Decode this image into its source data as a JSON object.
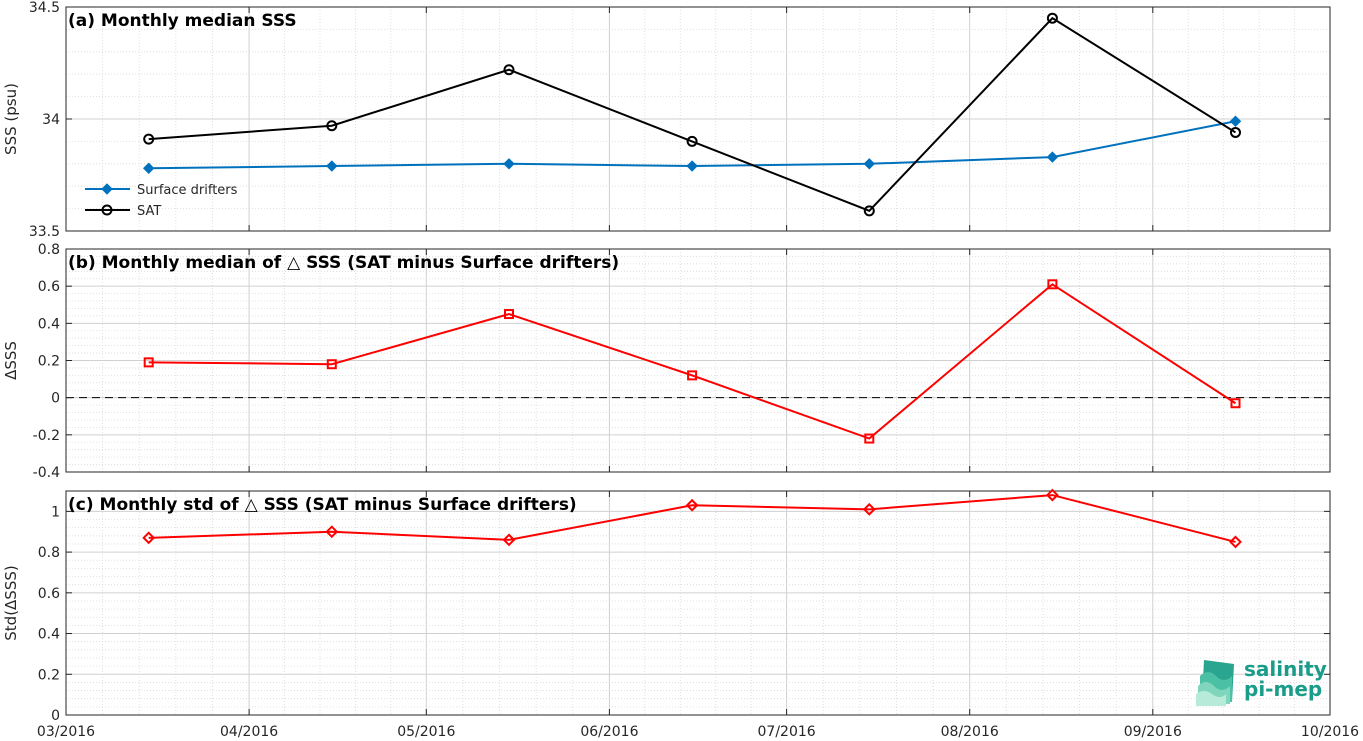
{
  "chart_data": [
    {
      "type": "line",
      "title": "(a) Monthly median SSS",
      "ylabel": "SSS (psu)",
      "ylim": [
        33.5,
        34.5
      ],
      "yticks": [
        33.5,
        34,
        34.5
      ],
      "ytick_labels": [
        "33.5",
        "34",
        "34.5"
      ],
      "x": [
        "2016-03-15",
        "2016-04-15",
        "2016-05-15",
        "2016-06-15",
        "2016-07-15",
        "2016-08-15",
        "2016-09-15"
      ],
      "series": [
        {
          "name": "Surface drifters",
          "values": [
            33.78,
            33.79,
            33.8,
            33.79,
            33.8,
            33.83,
            33.99
          ],
          "color": "#0072BD",
          "marker": "diamond"
        },
        {
          "name": "SAT",
          "values": [
            33.91,
            33.97,
            34.22,
            33.9,
            33.59,
            34.45,
            33.94
          ],
          "color": "#000000",
          "marker": "circle"
        }
      ],
      "legend_position": "lower-left",
      "grid": true
    },
    {
      "type": "line",
      "title": "(b) Monthly median of △ SSS (SAT minus Surface drifters)",
      "ylabel": "ΔSSS",
      "ylim": [
        -0.4,
        0.8
      ],
      "yticks": [
        -0.4,
        -0.2,
        0,
        0.2,
        0.4,
        0.6,
        0.8
      ],
      "ytick_labels": [
        "-0.4",
        "-0.2",
        "0",
        "0.2",
        "0.4",
        "0.6",
        "0.8"
      ],
      "x": [
        "2016-03-15",
        "2016-04-15",
        "2016-05-15",
        "2016-06-15",
        "2016-07-15",
        "2016-08-15",
        "2016-09-15"
      ],
      "series": [
        {
          "values": [
            0.19,
            0.18,
            0.45,
            0.12,
            -0.22,
            0.61,
            -0.03
          ],
          "color": "#FF0000",
          "marker": "square"
        }
      ],
      "zero_line": true,
      "grid": true
    },
    {
      "type": "line",
      "title": "(c) Monthly std of △ SSS (SAT minus Surface drifters)",
      "ylabel": "Std(ΔSSS)",
      "ylim": [
        0,
        1.1
      ],
      "yticks": [
        0,
        0.2,
        0.4,
        0.6,
        0.8,
        1
      ],
      "ytick_labels": [
        "0",
        "0.2",
        "0.4",
        "0.6",
        "0.8",
        "1"
      ],
      "x": [
        "2016-03-15",
        "2016-04-15",
        "2016-05-15",
        "2016-06-15",
        "2016-07-15",
        "2016-08-15",
        "2016-09-15"
      ],
      "series": [
        {
          "values": [
            0.87,
            0.9,
            0.86,
            1.03,
            1.01,
            1.08,
            0.85
          ],
          "color": "#FF0000",
          "marker": "diamond"
        }
      ],
      "grid": true
    }
  ],
  "xaxis": {
    "range": [
      "2016-03-01",
      "2016-10-01"
    ],
    "ticks": [
      "2016-03-01",
      "2016-04-01",
      "2016-05-01",
      "2016-06-01",
      "2016-07-01",
      "2016-08-01",
      "2016-09-01",
      "2016-10-01"
    ],
    "tick_labels": [
      "03/2016",
      "04/2016",
      "05/2016",
      "06/2016",
      "07/2016",
      "08/2016",
      "09/2016",
      "10/2016"
    ]
  },
  "logo": {
    "line1": "salinity",
    "line2": "pi-mep",
    "color": "#1a9c8a"
  }
}
